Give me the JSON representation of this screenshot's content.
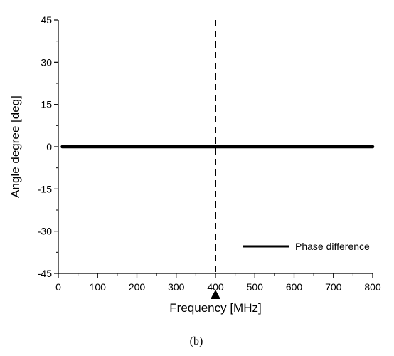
{
  "chart_data": {
    "type": "line",
    "xlabel": "Frequency [MHz]",
    "ylabel": "Angle degree [deg]",
    "xlim": [
      0,
      800
    ],
    "ylim": [
      -45,
      45
    ],
    "xticks": [
      0,
      100,
      200,
      300,
      400,
      500,
      600,
      700,
      800
    ],
    "yticks": [
      45,
      30,
      15,
      0,
      -15,
      -30,
      -45
    ],
    "grid": false,
    "legend": "bottom-right",
    "series": [
      {
        "name": "Phase difference",
        "x": [
          10,
          800
        ],
        "y": [
          0,
          0
        ],
        "color": "#000000"
      }
    ],
    "marker_line": {
      "x": 400,
      "style": "dashed",
      "color": "#000000"
    },
    "marker_arrow": {
      "x": 400
    },
    "caption": "(b)"
  }
}
